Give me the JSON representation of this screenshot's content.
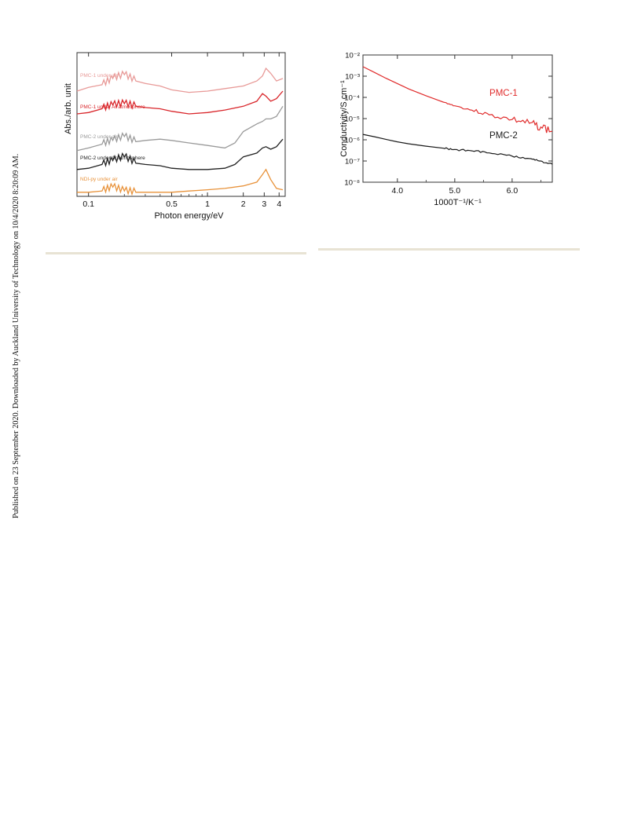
{
  "side_note": "Published on 23 September 2020. Downloaded by Auckland University of Technology on 10/4/2020 8:20:09 AM.",
  "chart_data": [
    {
      "type": "line",
      "xlabel": "Photon energy/eV",
      "ylabel": "Abs./arb. unit",
      "xscale": "log",
      "xlim": [
        0.08,
        4.5
      ],
      "x_ticks": [
        "0.1",
        "0.5",
        "1",
        "2",
        "3",
        "4"
      ],
      "y_ticks": "none",
      "grid": false,
      "legend": "inline labels at left",
      "series": [
        {
          "name": "PMC-1 under air",
          "color": "#e89a98",
          "x": [
            0.08,
            0.1,
            0.13,
            0.16,
            0.2,
            0.25,
            0.3,
            0.4,
            0.5,
            0.7,
            1.0,
            1.4,
            2.0,
            2.6,
            2.9,
            3.1,
            3.4,
            3.8,
            4.3
          ],
          "y": [
            0.82,
            0.85,
            0.87,
            0.92,
            0.95,
            0.9,
            0.88,
            0.86,
            0.83,
            0.81,
            0.82,
            0.84,
            0.86,
            0.9,
            0.94,
            1.0,
            0.96,
            0.9,
            0.92
          ]
        },
        {
          "name": "PMC-1 under Ar atmosphere",
          "color": "#d9262b",
          "x": [
            0.08,
            0.1,
            0.13,
            0.16,
            0.2,
            0.25,
            0.3,
            0.4,
            0.5,
            0.7,
            1.0,
            1.4,
            2.0,
            2.6,
            2.9,
            3.1,
            3.4,
            3.8,
            4.3
          ],
          "y": [
            0.64,
            0.65,
            0.68,
            0.71,
            0.72,
            0.7,
            0.69,
            0.68,
            0.66,
            0.64,
            0.65,
            0.67,
            0.7,
            0.74,
            0.8,
            0.78,
            0.74,
            0.76,
            0.82
          ]
        },
        {
          "name": "PMC-2 under air",
          "color": "#9a9a9a",
          "x": [
            0.08,
            0.1,
            0.13,
            0.16,
            0.2,
            0.25,
            0.3,
            0.4,
            0.5,
            0.7,
            1.0,
            1.4,
            1.7,
            2.0,
            2.6,
            2.9,
            3.1,
            3.4,
            3.8,
            4.3
          ],
          "y": [
            0.35,
            0.37,
            0.4,
            0.43,
            0.46,
            0.42,
            0.43,
            0.44,
            0.43,
            0.41,
            0.39,
            0.37,
            0.41,
            0.5,
            0.56,
            0.58,
            0.6,
            0.6,
            0.62,
            0.7
          ]
        },
        {
          "name": "PMC-2 under Ar atmosphere",
          "color": "#222222",
          "x": [
            0.08,
            0.1,
            0.13,
            0.16,
            0.2,
            0.25,
            0.3,
            0.4,
            0.5,
            0.7,
            1.0,
            1.4,
            1.7,
            2.0,
            2.6,
            2.9,
            3.1,
            3.4,
            3.8,
            4.3
          ],
          "y": [
            0.2,
            0.21,
            0.24,
            0.27,
            0.3,
            0.25,
            0.24,
            0.23,
            0.21,
            0.2,
            0.2,
            0.21,
            0.24,
            0.3,
            0.33,
            0.37,
            0.38,
            0.36,
            0.38,
            0.44
          ]
        },
        {
          "name": "NDI-py under air",
          "color": "#e8923a",
          "x": [
            0.08,
            0.1,
            0.13,
            0.16,
            0.2,
            0.25,
            0.3,
            0.4,
            0.5,
            0.7,
            1.0,
            1.4,
            2.0,
            2.6,
            2.9,
            3.1,
            3.4,
            3.8,
            4.3
          ],
          "y": [
            0.02,
            0.02,
            0.03,
            0.06,
            0.03,
            0.02,
            0.02,
            0.02,
            0.02,
            0.03,
            0.04,
            0.05,
            0.07,
            0.1,
            0.16,
            0.2,
            0.12,
            0.05,
            0.04
          ]
        }
      ]
    },
    {
      "type": "line",
      "xlabel": "1000T⁻¹/K⁻¹",
      "ylabel": "Conductivity/S cm⁻¹",
      "yscale": "log",
      "xlim": [
        3.4,
        6.7
      ],
      "ylim": [
        1e-08,
        0.01
      ],
      "x_ticks": [
        "4.0",
        "5.0",
        "6.0"
      ],
      "y_ticks": [
        "10⁻²",
        "10⁻³",
        "10⁻⁴",
        "10⁻⁵",
        "10⁻⁶",
        "10⁻⁷",
        "10⁻⁸"
      ],
      "grid": false,
      "legend": "inline labels",
      "series": [
        {
          "name": "PMC-1",
          "color": "#e02b2b",
          "x": [
            3.4,
            3.6,
            3.8,
            4.0,
            4.2,
            4.5,
            4.8,
            5.0,
            5.3,
            5.6,
            6.0,
            6.3,
            6.5,
            6.7
          ],
          "y": [
            0.0028,
            0.0015,
            0.0008,
            0.00045,
            0.00025,
            0.00012,
            6e-05,
            4e-05,
            2.5e-05,
            1.5e-05,
            9e-06,
            6e-06,
            4e-06,
            2.5e-06
          ]
        },
        {
          "name": "PMC-2",
          "color": "#1a1a1a",
          "x": [
            3.4,
            3.6,
            3.8,
            4.0,
            4.2,
            4.5,
            4.8,
            5.0,
            5.3,
            5.6,
            6.0,
            6.3,
            6.5,
            6.7
          ],
          "y": [
            1.8e-06,
            1.4e-06,
            1.05e-06,
            8e-07,
            6.5e-07,
            5e-07,
            4e-07,
            3.5e-07,
            3e-07,
            2.4e-07,
            1.7e-07,
            1.3e-07,
            1e-07,
            7e-08
          ]
        }
      ]
    }
  ]
}
